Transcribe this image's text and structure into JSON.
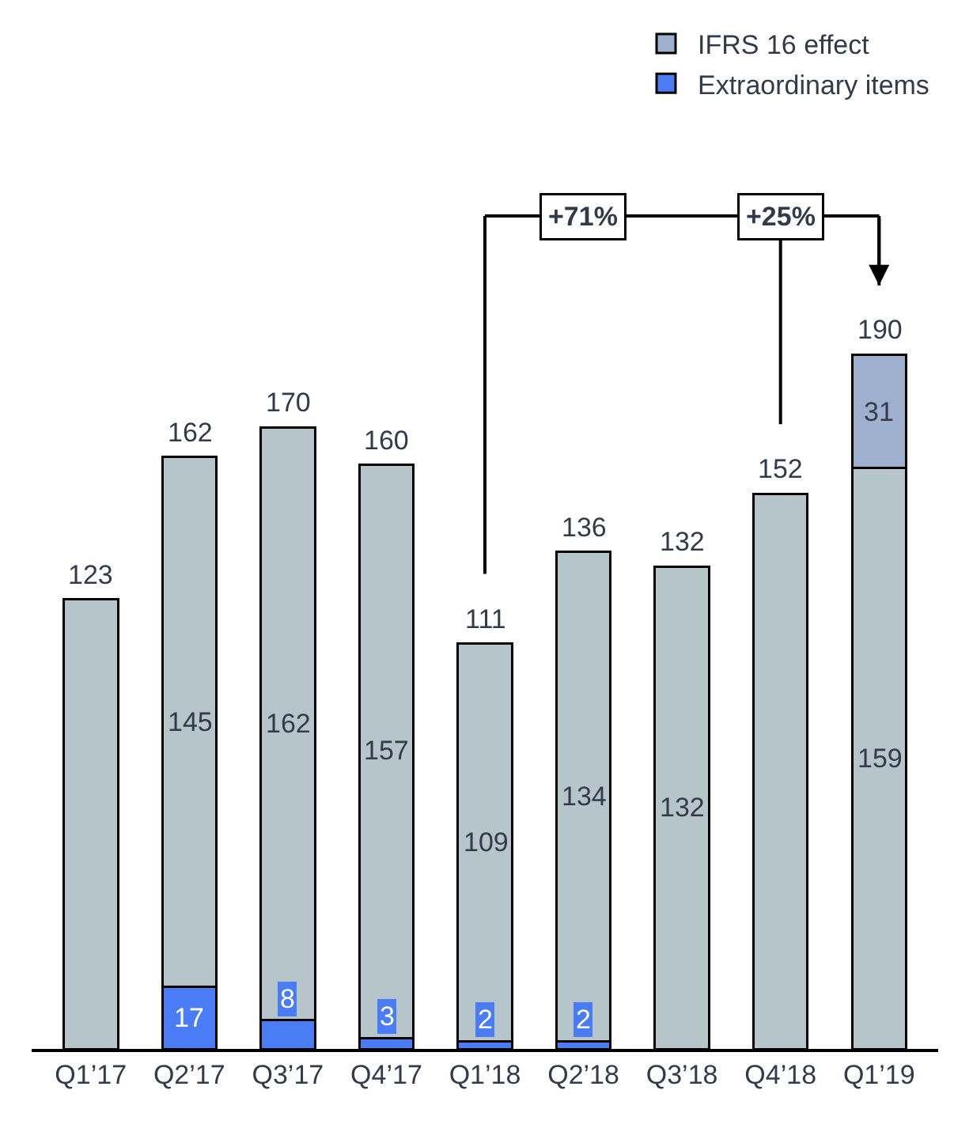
{
  "chart_data": {
    "type": "bar",
    "stacked": true,
    "categories": [
      "Q1’17",
      "Q2’17",
      "Q3’17",
      "Q4’17",
      "Q1’18",
      "Q2’18",
      "Q3’18",
      "Q4’18",
      "Q1’19"
    ],
    "series": [
      {
        "name": "Extraordinary items",
        "color": "#4a7cf6",
        "values": [
          null,
          17,
          8,
          3,
          2,
          2,
          null,
          null,
          null
        ],
        "value_labels": [
          null,
          "17",
          "8",
          "3",
          "2",
          "2",
          null,
          null,
          null
        ]
      },
      {
        "color": "#b6c5ca",
        "values": [
          123,
          145,
          162,
          157,
          109,
          134,
          132,
          152,
          159
        ],
        "value_labels": [
          null,
          "145",
          "162",
          "157",
          "109",
          "134",
          "132",
          null,
          "159"
        ]
      },
      {
        "name": "IFRS 16 effect",
        "color": "#9eb0cd",
        "values": [
          null,
          null,
          null,
          null,
          null,
          null,
          null,
          null,
          31
        ],
        "value_labels": [
          null,
          null,
          null,
          null,
          null,
          null,
          null,
          null,
          "31"
        ]
      }
    ],
    "totals": [
      "123",
      "162",
      "170",
      "160",
      "111",
      "136",
      "132",
      "152",
      "190"
    ],
    "annotations": [
      "+71%",
      "+25%"
    ],
    "legend": "top right"
  }
}
